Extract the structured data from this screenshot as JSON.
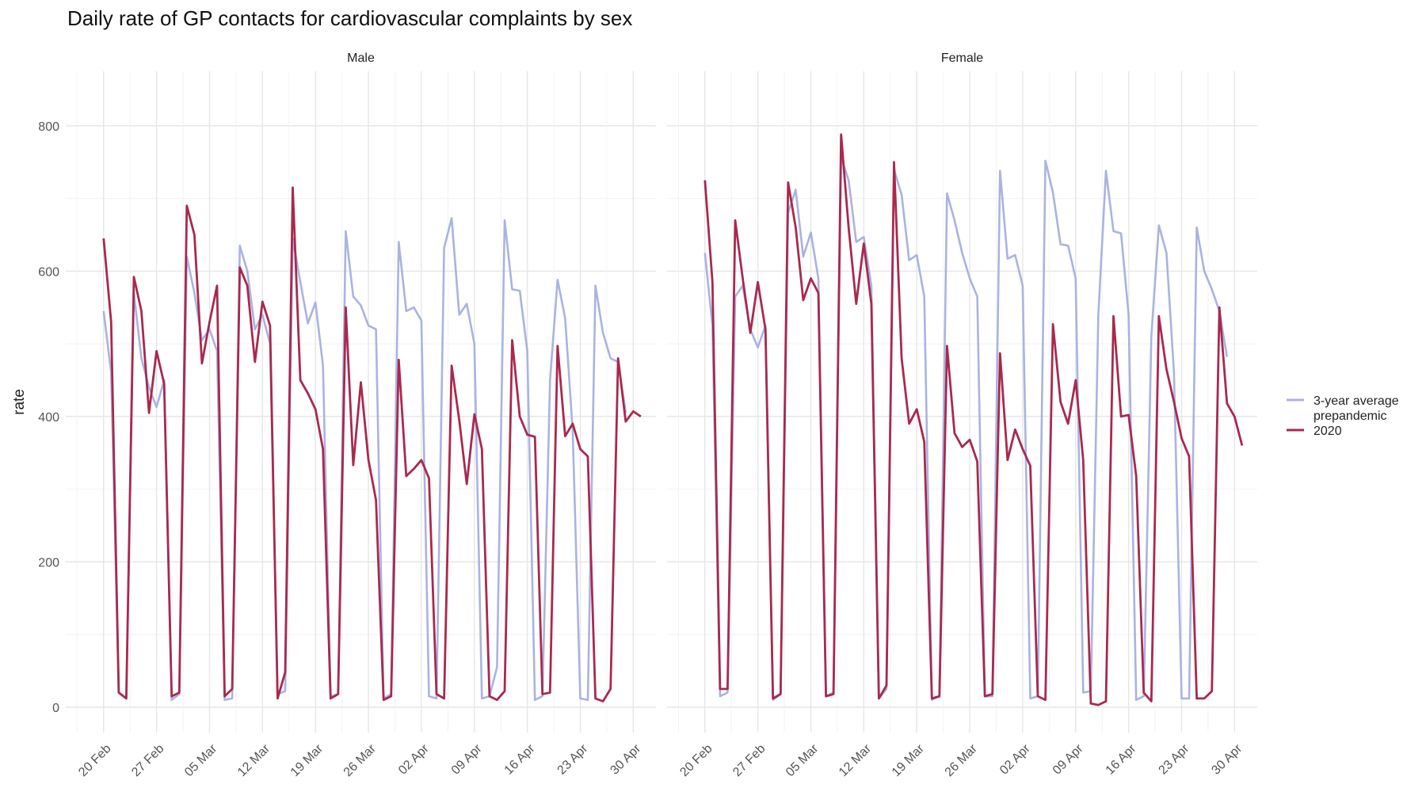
{
  "title": "Daily rate of GP contacts for cardiovascular complaints by sex",
  "chart_data": {
    "type": "line",
    "title": "Daily rate of GP contacts for cardiovascular complaints by sex",
    "xlabel": "",
    "ylabel": "rate",
    "ylim": [
      -35,
      875
    ],
    "yticks": [
      0,
      200,
      400,
      600,
      800
    ],
    "xlim": [
      "2020-02-15",
      "2020-05-03"
    ],
    "xticks": [
      "20 Feb",
      "27 Feb",
      "05 Mar",
      "12 Mar",
      "19 Mar",
      "26 Mar",
      "02 Apr",
      "09 Apr",
      "16 Apr",
      "23 Apr",
      "30 Apr"
    ],
    "x_start_date": "2020-02-20",
    "x_end_date": "2020-05-01",
    "grid": true,
    "legend_position": "right",
    "legend": [
      {
        "label": "3-year average\nprepandemic",
        "color": "#aab3e0"
      },
      {
        "label": "2020",
        "color": "#a8294e"
      }
    ],
    "panels": [
      {
        "label": "Male",
        "series": [
          {
            "name": "3-year average prepandemic",
            "color": "#aab3e0",
            "values": [
              545,
              460,
              20,
              12,
              570,
              480,
              440,
              413,
              450,
              10,
              18,
              620,
              570,
              505,
              520,
              490,
              10,
              12,
              635,
              600,
              520,
              540,
              500,
              18,
              22,
              645,
              585,
              528,
              557,
              470,
              15,
              18,
              655,
              565,
              553,
              525,
              520,
              12,
              18,
              640,
              545,
              550,
              532,
              15,
              12,
              632,
              673,
              540,
              555,
              500,
              12,
              15,
              55,
              670,
              575,
              573,
              490,
              10,
              15,
              450,
              588,
              535,
              380,
              12,
              10,
              580,
              515,
              480,
              475,
              405
            ]
          },
          {
            "name": "2020",
            "color": "#a8294e",
            "values": [
              645,
              530,
              20,
              12,
              592,
              545,
              405,
              490,
              445,
              15,
              20,
              690,
              650,
              473,
              530,
              580,
              15,
              25,
              605,
              580,
              475,
              558,
              525,
              12,
              48,
              715,
              450,
              432,
              410,
              355,
              12,
              18,
              550,
              333,
              447,
              340,
              285,
              10,
              15,
              478,
              318,
              328,
              340,
              315,
              18,
              12,
              470,
              395,
              307,
              403,
              355,
              15,
              10,
              22,
              505,
              400,
              375,
              372,
              18,
              20,
              497,
              373,
              390,
              355,
              345,
              12,
              8,
              25,
              480,
              393,
              407,
              400
            ]
          }
        ]
      },
      {
        "label": "Female",
        "series": [
          {
            "name": "3-year average prepandemic",
            "color": "#aab3e0",
            "values": [
              625,
              525,
              15,
              20,
              565,
              580,
              520,
              495,
              525,
              10,
              18,
              680,
              712,
              620,
              653,
              590,
              15,
              20,
              757,
              725,
              640,
              647,
              580,
              12,
              25,
              740,
              705,
              615,
              622,
              565,
              10,
              15,
              707,
              670,
              625,
              590,
              565,
              15,
              15,
              738,
              617,
              622,
              580,
              12,
              15,
              752,
              708,
              637,
              635,
              590,
              20,
              22,
              540,
              738,
              655,
              652,
              540,
              10,
              15,
              510,
              663,
              625,
              460,
              12,
              12,
              660,
              600,
              575,
              545,
              482
            ]
          },
          {
            "name": "2020",
            "color": "#a8294e",
            "values": [
              725,
              585,
              25,
              25,
              670,
              590,
              515,
              585,
              520,
              12,
              18,
              722,
              660,
              560,
              590,
              570,
              15,
              18,
              788,
              660,
              555,
              638,
              555,
              12,
              30,
              750,
              480,
              390,
              410,
              365,
              12,
              15,
              497,
              377,
              358,
              368,
              338,
              15,
              18,
              487,
              340,
              382,
              355,
              332,
              15,
              10,
              527,
              420,
              390,
              450,
              340,
              5,
              3,
              8,
              538,
              400,
              402,
              318,
              20,
              8,
              538,
              465,
              420,
              370,
              345,
              12,
              12,
              22,
              550,
              418,
              400,
              360
            ]
          }
        ]
      }
    ]
  }
}
